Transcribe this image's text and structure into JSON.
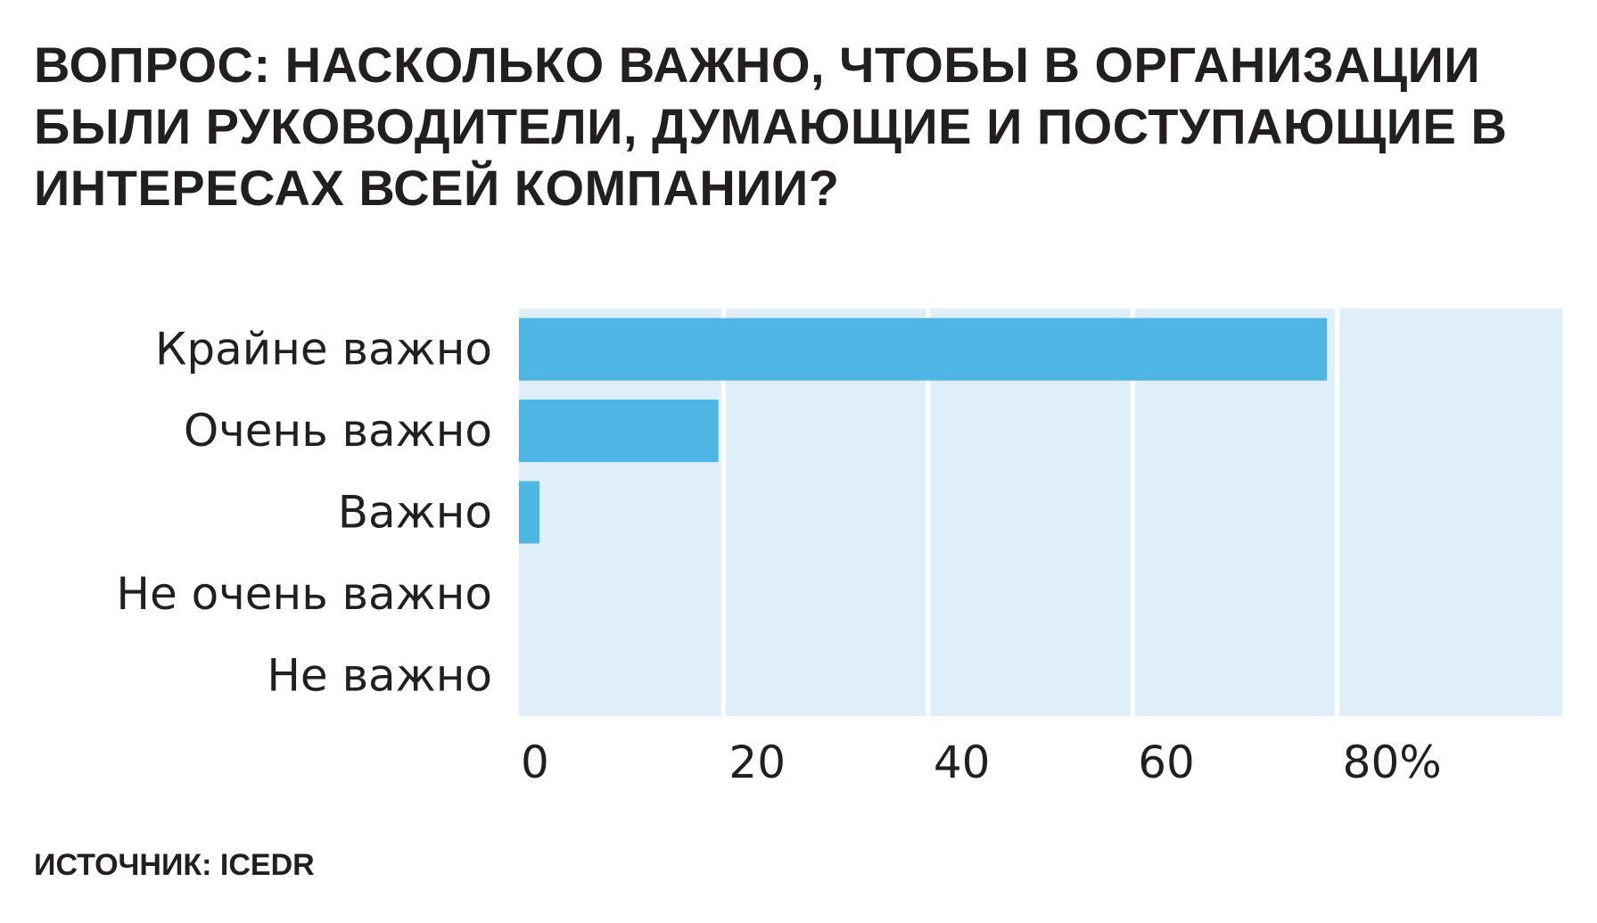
{
  "title": "ВОПРОС: НАСКОЛЬКО ВАЖНО, ЧТОБЫ В ОРГАНИЗАЦИИ БЫЛИ РУКОВОДИТЕЛИ, ДУМАЮЩИЕ И ПОСТУПАЮЩИЕ В ИНТЕРЕСАХ ВСЕЙ КОМПАНИИ?",
  "source": "ИСТОЧНИК: ICEDR",
  "colors": {
    "bar": "#4db6e4",
    "plot_background": "#dfeff9",
    "gridline": "#ffffff",
    "text": "#231f20"
  },
  "chart_data": {
    "type": "bar",
    "orientation": "horizontal",
    "title": "ВОПРОС: НАСКОЛЬКО ВАЖНО, ЧТОБЫ В ОРГАНИЗАЦИИ БЫЛИ РУКОВОДИТЕЛИ, ДУМАЮЩИЕ И ПОСТУПАЮЩИЕ В ИНТЕРЕСАХ ВСЕЙ КОМПАНИИ?",
    "categories": [
      "Крайне важно",
      "Очень важно",
      "Важно",
      "Не очень важно",
      "Не важно"
    ],
    "values": [
      79,
      19.5,
      2,
      0,
      0
    ],
    "xlim": [
      0,
      102
    ],
    "xticks": [
      0,
      20,
      40,
      60,
      80
    ],
    "xtick_labels": [
      "0",
      "20",
      "40",
      "60",
      "80%"
    ],
    "xlabel": "",
    "ylabel": "",
    "grid": true,
    "legend": "none"
  }
}
